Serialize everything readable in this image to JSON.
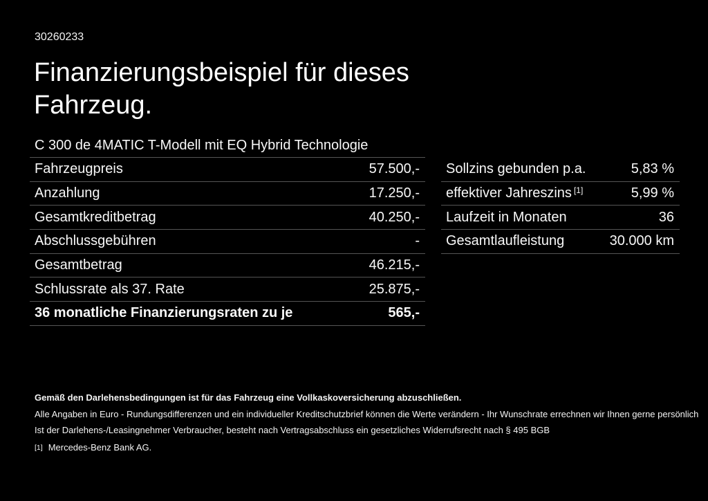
{
  "header": {
    "ref_number": "30260233",
    "title_line1": "Finanzierungsbeispiel für dieses",
    "title_line2": "Fahrzeug.",
    "vehicle_model": "C 300 de 4MATIC T-Modell mit EQ Hybrid Technologie"
  },
  "finance_table": {
    "rows": [
      {
        "label": "Fahrzeugpreis",
        "value": "57.500,-"
      },
      {
        "label": "Anzahlung",
        "value": "17.250,-"
      },
      {
        "label": "Gesamtkreditbetrag",
        "value": "40.250,-"
      },
      {
        "label": "Abschlussgebühren",
        "value": "-"
      },
      {
        "label": "Gesamtbetrag",
        "value": "46.215,-"
      },
      {
        "label": "Schlussrate als 37. Rate",
        "value": "25.875,-"
      },
      {
        "label": "36 monatliche Finanzierungsraten zu je",
        "value": "565,-"
      }
    ]
  },
  "conditions_table": {
    "rows": [
      {
        "label": "Sollzins gebunden p.a.",
        "value": "5,83 %"
      },
      {
        "label": "effektiver Jahreszins",
        "label_sup": "[1]",
        "value": "5,99 %"
      },
      {
        "label": "Laufzeit in Monaten",
        "value": "36"
      },
      {
        "label": "Gesamtlaufleistung",
        "value": "30.000 km"
      }
    ]
  },
  "notes": {
    "insurance_note": "Gemäß den Darlehensbedingungen ist für das Fahrzeug eine Vollkaskoversicherung abzuschließen.",
    "disclaimer_note": "Alle Angaben in Euro - Rundungsdifferenzen und ein individueller Kreditschutzbrief können die Werte verändern - Ihr Wunschrate errechnen wir Ihnen gerne persönlich",
    "withdrawal_note": "Ist der Darlehens-/Leasingnehmer Verbraucher, besteht nach Vertragsabschluss ein gesetzliches Widerrufsrecht nach § 495 BGB",
    "footnote_marker": "[1]",
    "footnote_text": "Mercedes-Benz Bank AG."
  },
  "colors": {
    "background": "#000000",
    "text": "#ffffff",
    "divider": "#555555"
  }
}
